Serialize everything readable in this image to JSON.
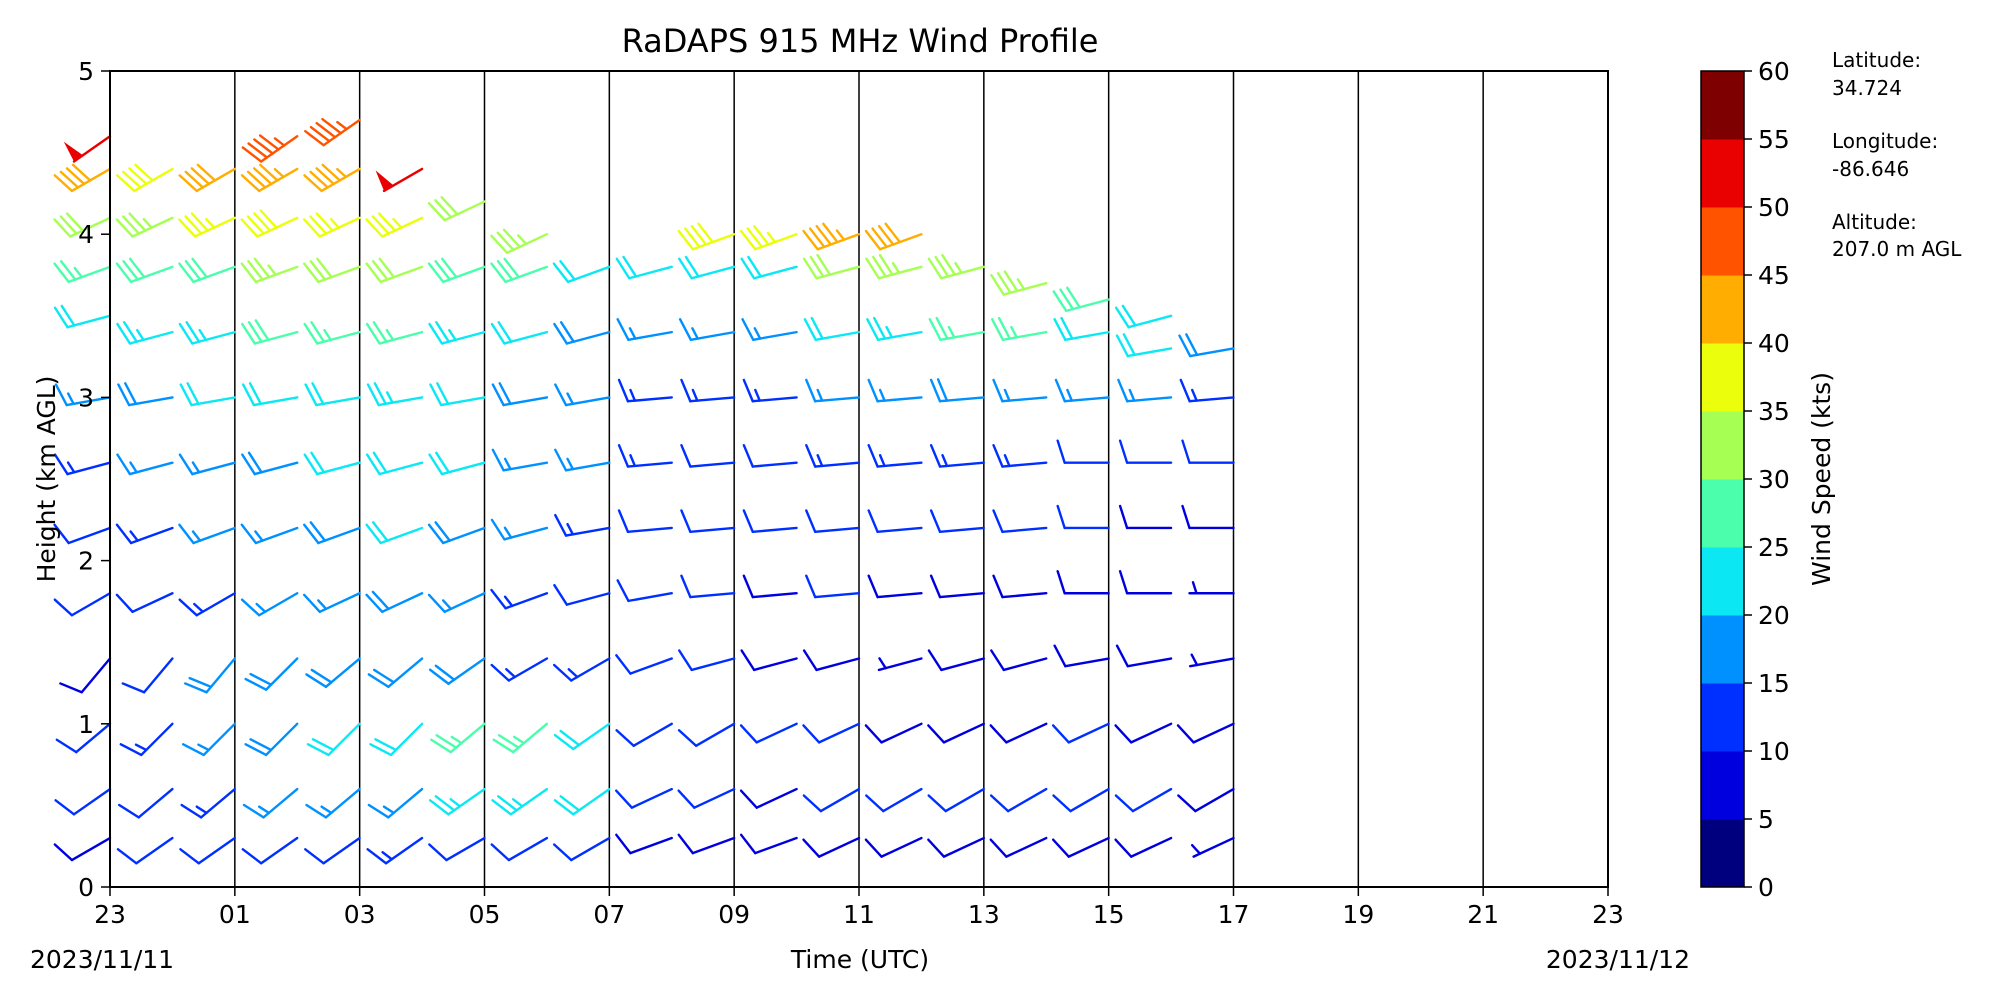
{
  "chart_data": {
    "type": "wind_barb_profile",
    "title": "RaDAPS 915 MHz Wind Profile",
    "xlabel": "Time (UTC)",
    "ylabel": "Height (km AGL)",
    "xlim": [
      0,
      24
    ],
    "ylim": [
      0,
      5
    ],
    "x_tick_labels": [
      "23",
      "01",
      "03",
      "05",
      "07",
      "09",
      "11",
      "13",
      "15",
      "17",
      "19",
      "21",
      "23"
    ],
    "y_tick_labels": [
      "0",
      "1",
      "2",
      "3",
      "4",
      "5"
    ],
    "date_labels": {
      "start": "2023/11/11",
      "end": "2023/11/12"
    },
    "colorbar": {
      "label": "Wind Speed (kts)",
      "levels": [
        0,
        5,
        10,
        15,
        20,
        25,
        30,
        35,
        40,
        45,
        50,
        55,
        60
      ],
      "tick_labels": [
        "0",
        "5",
        "10",
        "15",
        "20",
        "25",
        "30",
        "35",
        "40",
        "45",
        "50",
        "55",
        "60"
      ],
      "colors": [
        "#00007f",
        "#0000de",
        "#0030ff",
        "#0091ff",
        "#0ce8f3",
        "#4bfeab",
        "#a6ff53",
        "#ebff0c",
        "#ffad00",
        "#ff5300",
        "#e90000",
        "#7f0000"
      ]
    },
    "station": {
      "lat_label": "Latitude:",
      "lat": "34.724",
      "lon_label": "Longitude:",
      "lon": "-86.646",
      "alt_label": "Altitude:",
      "alt": "207.0 m AGL"
    },
    "profiles": [
      {
        "x": 0,
        "levels": [
          [
            0.3,
            240,
            8
          ],
          [
            0.6,
            235,
            10
          ],
          [
            1.0,
            230,
            12
          ],
          [
            1.4,
            220,
            9
          ],
          [
            1.8,
            240,
            10
          ],
          [
            2.2,
            250,
            12
          ],
          [
            2.6,
            255,
            14
          ],
          [
            3.0,
            260,
            16
          ],
          [
            3.5,
            255,
            22
          ],
          [
            3.8,
            250,
            27
          ],
          [
            4.1,
            245,
            31
          ],
          [
            4.4,
            240,
            40
          ],
          [
            4.6,
            235,
            52
          ]
        ]
      },
      {
        "x": 1,
        "levels": [
          [
            0.3,
            235,
            10
          ],
          [
            0.6,
            230,
            12
          ],
          [
            1.0,
            225,
            14
          ],
          [
            1.4,
            220,
            12
          ],
          [
            1.8,
            245,
            10
          ],
          [
            2.2,
            250,
            14
          ],
          [
            2.6,
            255,
            16
          ],
          [
            3.0,
            260,
            18
          ],
          [
            3.4,
            255,
            24
          ],
          [
            3.8,
            250,
            28
          ],
          [
            4.1,
            245,
            33
          ],
          [
            4.4,
            240,
            39
          ]
        ]
      },
      {
        "x": 2,
        "levels": [
          [
            0.3,
            235,
            11
          ],
          [
            0.6,
            230,
            14
          ],
          [
            1.0,
            225,
            16
          ],
          [
            1.4,
            220,
            18
          ],
          [
            1.8,
            240,
            14
          ],
          [
            2.2,
            250,
            16
          ],
          [
            2.6,
            255,
            17
          ],
          [
            3.0,
            260,
            20
          ],
          [
            3.4,
            255,
            24
          ],
          [
            3.8,
            250,
            29
          ],
          [
            4.1,
            245,
            36
          ],
          [
            4.4,
            240,
            41
          ]
        ]
      },
      {
        "x": 3,
        "levels": [
          [
            0.3,
            235,
            12
          ],
          [
            0.6,
            230,
            15
          ],
          [
            1.0,
            225,
            18
          ],
          [
            1.4,
            225,
            19
          ],
          [
            1.8,
            240,
            16
          ],
          [
            2.2,
            250,
            17
          ],
          [
            2.6,
            255,
            19
          ],
          [
            3.0,
            260,
            21
          ],
          [
            3.4,
            255,
            28
          ],
          [
            3.8,
            250,
            33
          ],
          [
            4.1,
            245,
            38
          ],
          [
            4.4,
            240,
            44
          ],
          [
            4.6,
            235,
            46
          ]
        ]
      },
      {
        "x": 4,
        "levels": [
          [
            0.3,
            235,
            12
          ],
          [
            0.6,
            230,
            16
          ],
          [
            1.0,
            225,
            20
          ],
          [
            1.4,
            230,
            18
          ],
          [
            1.8,
            245,
            17
          ],
          [
            2.2,
            250,
            19
          ],
          [
            2.6,
            255,
            20
          ],
          [
            3.0,
            260,
            22
          ],
          [
            3.4,
            255,
            27
          ],
          [
            3.8,
            250,
            31
          ],
          [
            4.1,
            245,
            36
          ],
          [
            4.4,
            240,
            43
          ],
          [
            4.7,
            235,
            47
          ]
        ]
      },
      {
        "x": 5,
        "levels": [
          [
            0.3,
            235,
            13
          ],
          [
            0.6,
            230,
            17
          ],
          [
            1.0,
            225,
            22
          ],
          [
            1.4,
            230,
            19
          ],
          [
            1.8,
            245,
            18
          ],
          [
            2.2,
            250,
            20
          ],
          [
            2.6,
            255,
            22
          ],
          [
            3.0,
            260,
            24
          ],
          [
            3.4,
            255,
            27
          ],
          [
            3.8,
            250,
            32
          ],
          [
            4.1,
            245,
            36
          ],
          [
            4.4,
            240,
            52
          ]
        ]
      },
      {
        "x": 6,
        "levels": [
          [
            0.3,
            240,
            12
          ],
          [
            0.6,
            235,
            24
          ],
          [
            1.0,
            230,
            27
          ],
          [
            1.4,
            235,
            18
          ],
          [
            1.8,
            245,
            16
          ],
          [
            2.2,
            250,
            18
          ],
          [
            2.6,
            255,
            20
          ],
          [
            3.0,
            260,
            21
          ],
          [
            3.4,
            255,
            24
          ],
          [
            3.8,
            250,
            28
          ],
          [
            4.2,
            245,
            31
          ]
        ]
      },
      {
        "x": 7,
        "levels": [
          [
            0.3,
            240,
            10
          ],
          [
            0.6,
            235,
            24
          ],
          [
            1.0,
            230,
            26
          ],
          [
            1.4,
            240,
            14
          ],
          [
            1.8,
            250,
            14
          ],
          [
            2.2,
            255,
            16
          ],
          [
            2.6,
            260,
            17
          ],
          [
            3.0,
            260,
            19
          ],
          [
            3.4,
            255,
            22
          ],
          [
            3.8,
            250,
            28
          ],
          [
            4.0,
            245,
            33
          ]
        ]
      },
      {
        "x": 8,
        "levels": [
          [
            0.3,
            240,
            10
          ],
          [
            0.6,
            235,
            22
          ],
          [
            1.0,
            235,
            20
          ],
          [
            1.4,
            240,
            14
          ],
          [
            1.8,
            255,
            12
          ],
          [
            2.2,
            260,
            13
          ],
          [
            2.6,
            260,
            15
          ],
          [
            3.0,
            260,
            16
          ],
          [
            3.4,
            255,
            18
          ],
          [
            3.8,
            250,
            22
          ]
        ]
      },
      {
        "x": 9,
        "levels": [
          [
            0.3,
            250,
            8
          ],
          [
            0.6,
            245,
            10
          ],
          [
            1.0,
            240,
            12
          ],
          [
            1.4,
            250,
            10
          ],
          [
            1.8,
            260,
            11
          ],
          [
            2.2,
            265,
            12
          ],
          [
            2.6,
            265,
            13
          ],
          [
            3.0,
            265,
            14
          ],
          [
            3.4,
            260,
            16
          ],
          [
            3.8,
            255,
            20
          ]
        ]
      },
      {
        "x": 10,
        "levels": [
          [
            0.3,
            250,
            9
          ],
          [
            0.6,
            245,
            10
          ],
          [
            1.0,
            240,
            12
          ],
          [
            1.4,
            255,
            10
          ],
          [
            1.8,
            265,
            10
          ],
          [
            2.2,
            265,
            11
          ],
          [
            2.6,
            265,
            12
          ],
          [
            3.0,
            265,
            14
          ],
          [
            3.4,
            260,
            17
          ],
          [
            3.8,
            255,
            22
          ],
          [
            4.0,
            250,
            38
          ]
        ]
      },
      {
        "x": 11,
        "levels": [
          [
            0.3,
            250,
            8
          ],
          [
            0.6,
            245,
            9
          ],
          [
            1.0,
            245,
            10
          ],
          [
            1.4,
            255,
            8
          ],
          [
            1.8,
            265,
            9
          ],
          [
            2.2,
            265,
            10
          ],
          [
            2.6,
            265,
            11
          ],
          [
            3.0,
            265,
            13
          ],
          [
            3.4,
            260,
            16
          ],
          [
            3.8,
            255,
            20
          ],
          [
            4.0,
            250,
            36
          ]
        ]
      },
      {
        "x": 12,
        "levels": [
          [
            0.3,
            245,
            9
          ],
          [
            0.6,
            240,
            11
          ],
          [
            1.0,
            245,
            10
          ],
          [
            1.4,
            255,
            8
          ],
          [
            1.8,
            265,
            10
          ],
          [
            2.2,
            265,
            11
          ],
          [
            2.6,
            265,
            13
          ],
          [
            3.0,
            265,
            15
          ],
          [
            3.4,
            260,
            22
          ],
          [
            3.8,
            255,
            30
          ],
          [
            4.0,
            250,
            43
          ]
        ]
      },
      {
        "x": 13,
        "levels": [
          [
            0.3,
            245,
            9
          ],
          [
            0.6,
            240,
            11
          ],
          [
            1.0,
            245,
            9
          ],
          [
            1.4,
            255,
            7
          ],
          [
            1.8,
            265,
            9
          ],
          [
            2.2,
            265,
            11
          ],
          [
            2.6,
            265,
            13
          ],
          [
            3.0,
            265,
            16
          ],
          [
            3.4,
            260,
            24
          ],
          [
            3.8,
            255,
            33
          ],
          [
            4.0,
            250,
            42
          ]
        ]
      },
      {
        "x": 14,
        "levels": [
          [
            0.3,
            245,
            8
          ],
          [
            0.6,
            240,
            10
          ],
          [
            1.0,
            245,
            9
          ],
          [
            1.4,
            255,
            8
          ],
          [
            1.8,
            265,
            9
          ],
          [
            2.2,
            265,
            11
          ],
          [
            2.6,
            265,
            14
          ],
          [
            3.0,
            265,
            18
          ],
          [
            3.4,
            260,
            26
          ],
          [
            3.8,
            255,
            33
          ]
        ]
      },
      {
        "x": 15,
        "levels": [
          [
            0.3,
            245,
            8
          ],
          [
            0.6,
            240,
            10
          ],
          [
            1.0,
            245,
            9
          ],
          [
            1.4,
            255,
            8
          ],
          [
            1.8,
            265,
            9
          ],
          [
            2.2,
            265,
            10
          ],
          [
            2.6,
            265,
            13
          ],
          [
            3.0,
            265,
            17
          ],
          [
            3.4,
            260,
            25
          ],
          [
            3.7,
            255,
            33
          ]
        ]
      },
      {
        "x": 16,
        "levels": [
          [
            0.3,
            245,
            8
          ],
          [
            0.6,
            240,
            10
          ],
          [
            1.0,
            245,
            10
          ],
          [
            1.4,
            260,
            8
          ],
          [
            1.8,
            270,
            8
          ],
          [
            2.2,
            270,
            10
          ],
          [
            2.6,
            270,
            12
          ],
          [
            3.0,
            265,
            16
          ],
          [
            3.4,
            260,
            22
          ],
          [
            3.6,
            255,
            28
          ]
        ]
      },
      {
        "x": 17,
        "levels": [
          [
            0.3,
            245,
            8
          ],
          [
            0.6,
            240,
            10
          ],
          [
            1.0,
            245,
            9
          ],
          [
            1.4,
            260,
            8
          ],
          [
            1.8,
            270,
            8
          ],
          [
            2.2,
            270,
            9
          ],
          [
            2.6,
            270,
            11
          ],
          [
            3.0,
            265,
            15
          ],
          [
            3.3,
            260,
            20
          ],
          [
            3.5,
            255,
            22
          ]
        ]
      },
      {
        "x": 18,
        "levels": [
          [
            0.3,
            245,
            7
          ],
          [
            0.6,
            240,
            9
          ],
          [
            1.0,
            245,
            8
          ],
          [
            1.4,
            260,
            7
          ],
          [
            1.8,
            270,
            7
          ],
          [
            2.2,
            270,
            8
          ],
          [
            2.6,
            270,
            10
          ],
          [
            3.0,
            265,
            13
          ],
          [
            3.3,
            260,
            18
          ]
        ]
      }
    ]
  }
}
